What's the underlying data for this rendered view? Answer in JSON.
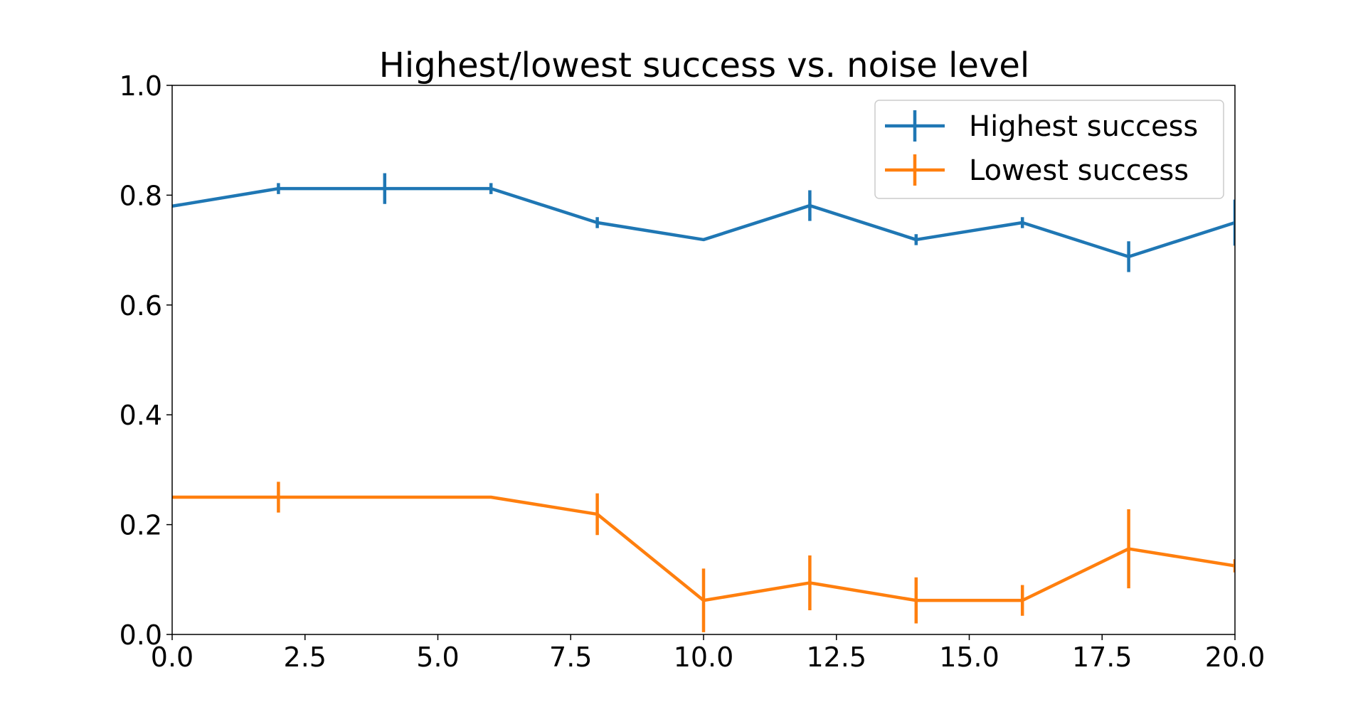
{
  "chart_data": {
    "type": "line",
    "title": "Highest/lowest success vs. noise level",
    "xlabel": "",
    "ylabel": "",
    "xlim": [
      0,
      20
    ],
    "ylim": [
      0,
      1
    ],
    "xticks": [
      "0.0",
      "2.5",
      "5.0",
      "7.5",
      "10.0",
      "12.5",
      "15.0",
      "17.5",
      "20.0"
    ],
    "yticks": [
      "0.0",
      "0.2",
      "0.4",
      "0.6",
      "0.8",
      "1.0"
    ],
    "grid": false,
    "legend": "top-right",
    "x": [
      0,
      2,
      4,
      6,
      8,
      10,
      12,
      14,
      16,
      18,
      20
    ],
    "series": [
      {
        "name": "Highest success",
        "color": "#1f77b4",
        "values": [
          0.78,
          0.812,
          0.812,
          0.812,
          0.75,
          0.719,
          0.781,
          0.719,
          0.75,
          0.688,
          0.75
        ],
        "errors": [
          0.0,
          0.01,
          0.028,
          0.01,
          0.01,
          0.0,
          0.028,
          0.01,
          0.01,
          0.028,
          0.042
        ]
      },
      {
        "name": "Lowest success",
        "color": "#ff7f0e",
        "values": [
          0.25,
          0.25,
          0.25,
          0.25,
          0.219,
          0.062,
          0.094,
          0.062,
          0.062,
          0.156,
          0.125
        ],
        "errors": [
          0.0,
          0.028,
          0.0,
          0.0,
          0.038,
          0.058,
          0.05,
          0.042,
          0.028,
          0.072,
          0.012
        ]
      }
    ]
  }
}
